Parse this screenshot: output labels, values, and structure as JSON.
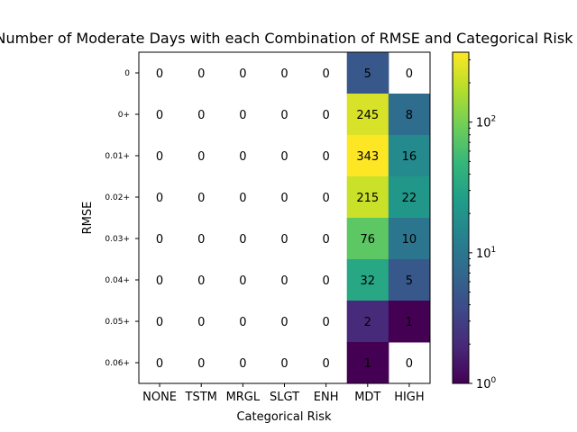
{
  "chart_data": {
    "type": "heatmap",
    "title": "Number of Moderate Days with each Combination of RMSE and Categorical Risk",
    "xlabel": "Categorical Risk",
    "ylabel": "RMSE",
    "x_categories": [
      "NONE",
      "TSTM",
      "MRGL",
      "SLGT",
      "ENH",
      "MDT",
      "HIGH"
    ],
    "y_categories": [
      "0",
      "0+",
      "0.01+",
      "0.02+",
      "0.03+",
      "0.04+",
      "0.05+",
      "0.06+"
    ],
    "values": [
      [
        0,
        0,
        0,
        0,
        0,
        5,
        0
      ],
      [
        0,
        0,
        0,
        0,
        0,
        245,
        8
      ],
      [
        0,
        0,
        0,
        0,
        0,
        343,
        16
      ],
      [
        0,
        0,
        0,
        0,
        0,
        215,
        22
      ],
      [
        0,
        0,
        0,
        0,
        0,
        76,
        10
      ],
      [
        0,
        0,
        0,
        0,
        0,
        32,
        5
      ],
      [
        0,
        0,
        0,
        0,
        0,
        2,
        1
      ],
      [
        0,
        0,
        0,
        0,
        0,
        1,
        0
      ]
    ],
    "colorscale": "viridis",
    "color_scale_type": "log",
    "color_range": [
      1,
      343
    ],
    "colorbar_ticks": [
      {
        "value": 1,
        "base": "10",
        "exp": "0"
      },
      {
        "value": 10,
        "base": "10",
        "exp": "1"
      },
      {
        "value": 100,
        "base": "10",
        "exp": "2"
      }
    ],
    "zero_cells_masked": true,
    "background": "#ffffff"
  }
}
